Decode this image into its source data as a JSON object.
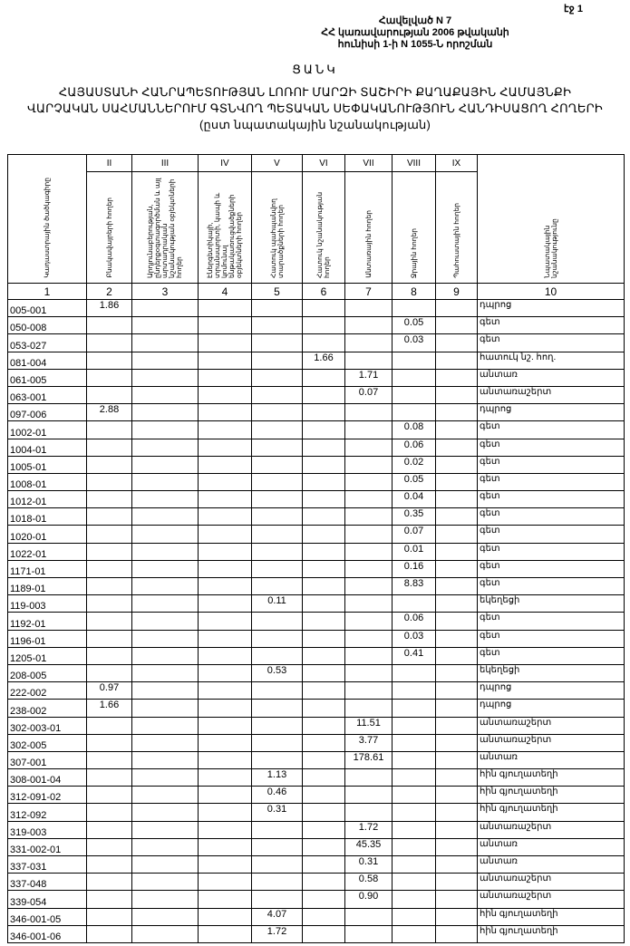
{
  "header": {
    "page": "էջ 1",
    "annex": [
      "Հավելված N 7",
      "ՀՀ կառավարության 2006 թվականի",
      "հունիսի 1-ի N 1055-Ն որոշման"
    ],
    "title_word": "ՑԱՆԿ",
    "title": "ՀԱՅԱՍՏԱՆԻ ՀԱՆՐԱՊԵՏՈՒԹՅԱՆ ԼՈՌՈՒ ՄԱՐԶԻ ՏԱՇԻՐԻ ՔԱՂԱՔԱՅԻՆ ՀԱՄԱՅՆՔԻ ՎԱՐՉԱԿԱՆ ՍԱՀՄԱՆՆԵՐՈՒՄ ԳՏՆՎՈՂ ՊԵՏԱԿԱՆ ՍԵՓԱԿԱՆՈՒԹՅՈՒՆ ՀԱՆԴԻՍԱՑՈՂ ՀՈՂԵՐԻ (ըստ նպատակային նշանակության)"
  },
  "table": {
    "roman": [
      "II",
      "III",
      "IV",
      "V",
      "VI",
      "VII",
      "VIII",
      "IX"
    ],
    "headers": [
      "Կադաստրային ծածկագիրը",
      "Բնակավայրերի հողեր",
      "Արդյունաբերության, ընդերքօգտագործման և այլ արտադրական նշանակության օբյեկտների հողեր",
      "Էներգետիկայի, տրանսպորտի, կապի և կոմունալ ենթակառուցվածքների օբյեկտների հողեր",
      "Հատուկ պահպանվող տարածքների հողեր",
      "Հատուկ նշանակության հողեր",
      "Անտառային հողեր",
      "Ջրային հողեր",
      "Պահուստային հողեր",
      "Նպատակային նշանակությունը"
    ],
    "numbers": [
      "1",
      "2",
      "3",
      "4",
      "5",
      "6",
      "7",
      "8",
      "9",
      "10"
    ],
    "rows": [
      {
        "code": "005-001",
        "col": 2,
        "value": "1.86",
        "purpose": "դպրոց"
      },
      {
        "code": "050-008",
        "col": 8,
        "value": "0.05",
        "purpose": "գետ"
      },
      {
        "code": "053-027",
        "col": 8,
        "value": "0.03",
        "purpose": "գետ"
      },
      {
        "code": "081-004",
        "col": 6,
        "value": "1.66",
        "purpose": "հատուկ նշ. հող."
      },
      {
        "code": "061-005",
        "col": 7,
        "value": "1.71",
        "purpose": "անտառ"
      },
      {
        "code": "063-001",
        "col": 7,
        "value": "0.07",
        "purpose": "անտառաշերտ"
      },
      {
        "code": "097-006",
        "col": 2,
        "value": "2.88",
        "purpose": "դպրոց"
      },
      {
        "code": "1002-01",
        "col": 8,
        "value": "0.08",
        "purpose": "գետ"
      },
      {
        "code": "1004-01",
        "col": 8,
        "value": "0.06",
        "purpose": "գետ"
      },
      {
        "code": "1005-01",
        "col": 8,
        "value": "0.02",
        "purpose": "գետ"
      },
      {
        "code": "1008-01",
        "col": 8,
        "value": "0.05",
        "purpose": "գետ"
      },
      {
        "code": "1012-01",
        "col": 8,
        "value": "0.04",
        "purpose": "գետ"
      },
      {
        "code": "1018-01",
        "col": 8,
        "value": "0.35",
        "purpose": "գետ"
      },
      {
        "code": "1020-01",
        "col": 8,
        "value": "0.07",
        "purpose": "գետ"
      },
      {
        "code": "1022-01",
        "col": 8,
        "value": "0.01",
        "purpose": "գետ"
      },
      {
        "code": "1171-01",
        "col": 8,
        "value": "0.16",
        "purpose": "գետ"
      },
      {
        "code": "1189-01",
        "col": 8,
        "value": "8.83",
        "purpose": "գետ"
      },
      {
        "code": "119-003",
        "col": 5,
        "value": "0.11",
        "purpose": "եկեղեցի"
      },
      {
        "code": "1192-01",
        "col": 8,
        "value": "0.06",
        "purpose": "գետ"
      },
      {
        "code": "1196-01",
        "col": 8,
        "value": "0.03",
        "purpose": "գետ"
      },
      {
        "code": "1205-01",
        "col": 8,
        "value": "0.41",
        "purpose": "գետ"
      },
      {
        "code": "208-005",
        "col": 5,
        "value": "0.53",
        "purpose": "եկեղեցի"
      },
      {
        "code": "222-002",
        "col": 2,
        "value": "0.97",
        "purpose": "դպրոց"
      },
      {
        "code": "238-002",
        "col": 2,
        "value": "1.66",
        "purpose": "դպրոց"
      },
      {
        "code": "302-003-01",
        "col": 7,
        "value": "11.51",
        "purpose": "անտառաշերտ"
      },
      {
        "code": "302-005",
        "col": 7,
        "value": "3.77",
        "purpose": "անտառաշերտ"
      },
      {
        "code": "307-001",
        "col": 7,
        "value": "178.61",
        "purpose": "անտառ"
      },
      {
        "code": "308-001-04",
        "col": 5,
        "value": "1.13",
        "purpose": "հին գյուղատեղի"
      },
      {
        "code": "312-091-02",
        "col": 5,
        "value": "0.46",
        "purpose": "հին գյուղատեղի"
      },
      {
        "code": "312-092",
        "col": 5,
        "value": "0.31",
        "purpose": "հին գյուղատեղի"
      },
      {
        "code": "319-003",
        "col": 7,
        "value": "1.72",
        "purpose": "անտառաշերտ"
      },
      {
        "code": "331-002-01",
        "col": 7,
        "value": "45.35",
        "purpose": "անտառ"
      },
      {
        "code": "337-031",
        "col": 7,
        "value": "0.31",
        "purpose": "անտառ"
      },
      {
        "code": "337-048",
        "col": 7,
        "value": "0.58",
        "purpose": "անտառաշերտ"
      },
      {
        "code": "339-054",
        "col": 7,
        "value": "0.90",
        "purpose": "անտառաշերտ"
      },
      {
        "code": "346-001-05",
        "col": 5,
        "value": "4.07",
        "purpose": "հին գյուղատեղի"
      },
      {
        "code": "346-001-06",
        "col": 5,
        "value": "1.72",
        "purpose": "հին գյուղատեղի"
      }
    ]
  }
}
